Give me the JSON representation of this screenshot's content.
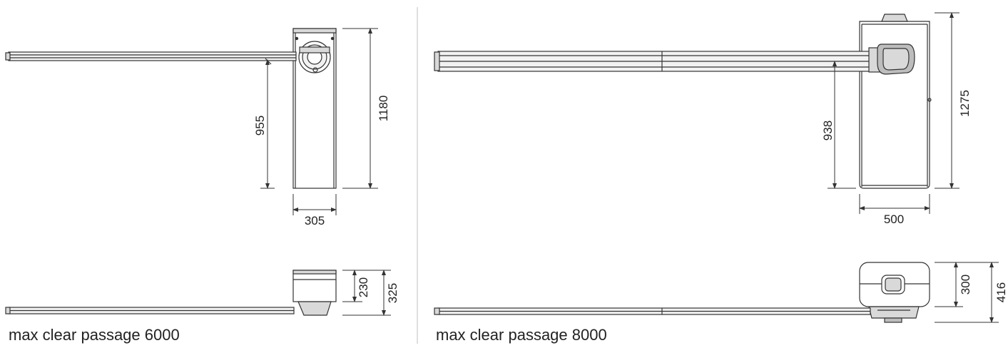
{
  "colors": {
    "line": "#333333",
    "fill_light": "#f2f2f2",
    "fill_mid": "#d9d9d9",
    "fill_dark": "#bdbdbd",
    "divider": "#bfbfbf"
  },
  "left_drawing": {
    "caption": "max clear passage 6000",
    "dimensions": {
      "beam_height": "955",
      "total_height": "1180",
      "cabinet_width": "305",
      "plan_depth_inner": "230",
      "plan_depth_outer": "325"
    }
  },
  "right_drawing": {
    "caption": "max clear passage 8000",
    "dimensions": {
      "beam_height": "938",
      "total_height": "1275",
      "cabinet_width": "500",
      "plan_depth_inner": "300",
      "plan_depth_outer": "416"
    }
  }
}
